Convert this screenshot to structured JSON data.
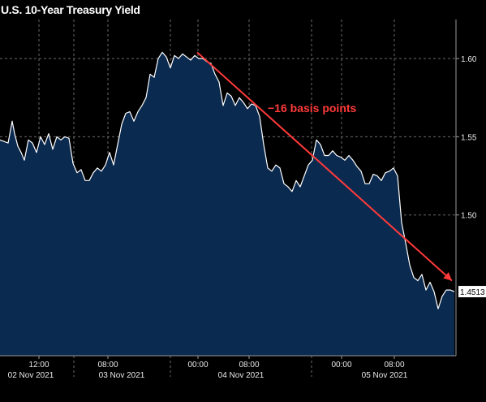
{
  "chart_data": {
    "type": "area",
    "title": "U.S. 10-Year Treasury Yield",
    "x_ticks_top": [
      "12:00",
      "08:00",
      "00:00",
      "08:00",
      "00:00",
      "08:00"
    ],
    "x_ticks_bottom": [
      "02 Nov 2021",
      "03 Nov 2021",
      "04 Nov 2021",
      "05 Nov 2021"
    ],
    "y_ticks": [
      "1.60",
      "1.55",
      "1.50"
    ],
    "ylim": [
      1.41,
      1.625
    ],
    "grid": true,
    "last_value": "1.4513",
    "annotation": "−16 basis points",
    "colors": {
      "area": "#0b2a50",
      "line": "#ffffff",
      "annotation": "#ff3a3a",
      "grid": "#6a6a6a",
      "label_bg": "#ffffff"
    },
    "series": [
      {
        "x": [
          0,
          5,
          10,
          15,
          18,
          22,
          26,
          30,
          35,
          40,
          45,
          50,
          55,
          60,
          65,
          70,
          75,
          80,
          85,
          90,
          95,
          100,
          105,
          110,
          115,
          120,
          125,
          130,
          135,
          140,
          145,
          150,
          155,
          160,
          165,
          170,
          175,
          180,
          185,
          190,
          195,
          200,
          205,
          210,
          215,
          220,
          225,
          230,
          235,
          240,
          245,
          250,
          255,
          260,
          265,
          270,
          275,
          280,
          285,
          290,
          295,
          300,
          305,
          310,
          315,
          320,
          325,
          330,
          335,
          340,
          345,
          350,
          355,
          360,
          365,
          370,
          375,
          380,
          385,
          390,
          395,
          400,
          405,
          410,
          415,
          420,
          425,
          430,
          435,
          440,
          445,
          450,
          455,
          460,
          465,
          470,
          475,
          480,
          485,
          490,
          495,
          500,
          505,
          510,
          515,
          520,
          525,
          530,
          535,
          540,
          545,
          550,
          555,
          560
        ],
        "values": [
          1.548,
          1.547,
          1.546,
          1.56,
          1.552,
          1.544,
          1.54,
          1.535,
          1.548,
          1.546,
          1.54,
          1.55,
          1.545,
          1.552,
          1.542,
          1.55,
          1.548,
          1.55,
          1.549,
          1.533,
          1.527,
          1.529,
          1.522,
          1.522,
          1.527,
          1.53,
          1.528,
          1.532,
          1.54,
          1.532,
          1.545,
          1.558,
          1.565,
          1.566,
          1.56,
          1.566,
          1.57,
          1.575,
          1.59,
          1.588,
          1.6,
          1.604,
          1.601,
          1.594,
          1.602,
          1.6,
          1.603,
          1.601,
          1.599,
          1.602,
          1.6,
          1.6,
          1.598,
          1.597,
          1.59,
          1.585,
          1.57,
          1.578,
          1.576,
          1.57,
          1.575,
          1.572,
          1.568,
          1.571,
          1.57,
          1.563,
          1.545,
          1.53,
          1.528,
          1.532,
          1.53,
          1.52,
          1.518,
          1.515,
          1.522,
          1.518,
          1.525,
          1.532,
          1.535,
          1.548,
          1.545,
          1.538,
          1.538,
          1.541,
          1.538,
          1.537,
          1.535,
          1.538,
          1.535,
          1.531,
          1.528,
          1.52,
          1.52,
          1.526,
          1.525,
          1.522,
          1.527,
          1.528,
          1.53,
          1.525,
          1.495,
          1.482,
          1.468,
          1.46,
          1.458,
          1.462,
          1.452,
          1.457,
          1.451,
          1.44,
          1.448,
          1.452,
          1.452,
          1.451
        ]
      }
    ]
  }
}
